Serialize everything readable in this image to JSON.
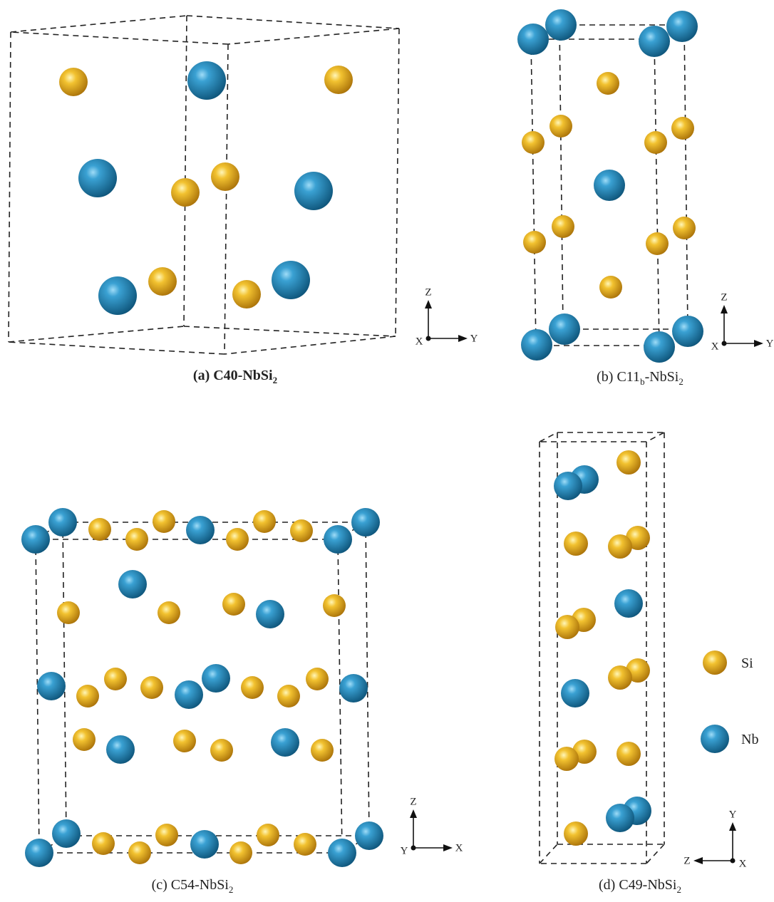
{
  "panels": [
    {
      "caption": [
        {
          "text": "(a) C40-NbSi"
        },
        {
          "text": "2",
          "sub": true
        }
      ],
      "bold": true,
      "axes": {
        "up": "Z",
        "side": "Y",
        "out": "X"
      }
    },
    {
      "caption": [
        {
          "text": "(b) C11"
        },
        {
          "text": "b",
          "sub": true
        },
        {
          "text": "-NbSi"
        },
        {
          "text": "2",
          "sub": true
        }
      ],
      "axes": {
        "up": "Z",
        "side": "Y",
        "out": "X"
      }
    },
    {
      "caption": [
        {
          "text": "(c) C54-NbSi"
        },
        {
          "text": "2",
          "sub": true
        }
      ],
      "axes": {
        "up": "Z",
        "side": "X",
        "out": "Y"
      }
    },
    {
      "caption": [
        {
          "text": "(d) C49-NbSi"
        },
        {
          "text": "2",
          "sub": true
        }
      ],
      "axes": {
        "up": "Y",
        "side": "Z",
        "out": "X"
      }
    }
  ],
  "legend": [
    {
      "label": "Si"
    },
    {
      "label": "Nb"
    }
  ]
}
